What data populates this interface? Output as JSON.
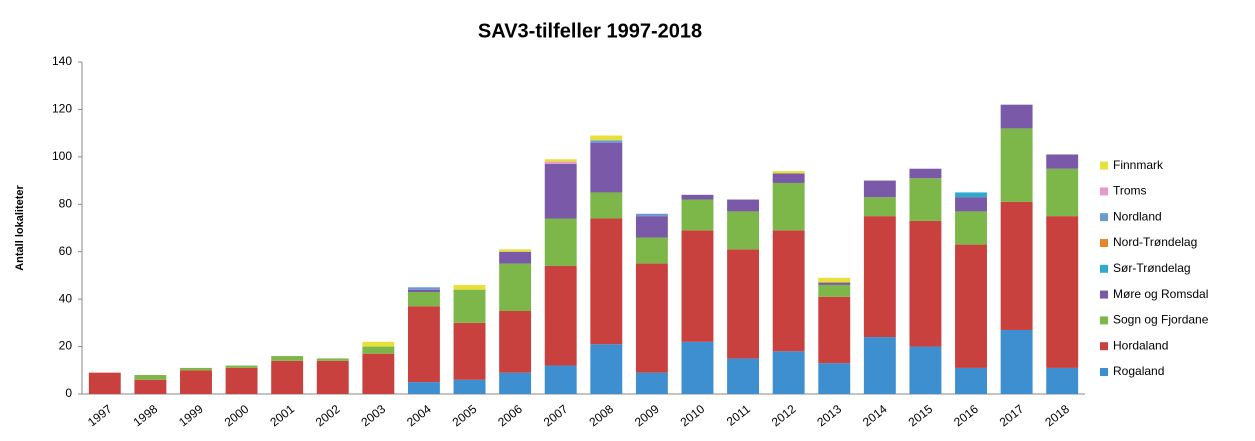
{
  "chart_data": {
    "type": "bar",
    "stacked": true,
    "title": "SAV3-tilfeller 1997-2018",
    "y_label": "Antall lokaliteter",
    "categories": [
      "1997",
      "1998",
      "1999",
      "2000",
      "2001",
      "2002",
      "2003",
      "2004",
      "2005",
      "2006",
      "2007",
      "2008",
      "2009",
      "2010",
      "2011",
      "2012",
      "2013",
      "2014",
      "2015",
      "2016",
      "2017",
      "2018"
    ],
    "series": [
      {
        "name": "Rogaland",
        "color": "#3d8fd0",
        "values": [
          0,
          0,
          0,
          0,
          0,
          0,
          0,
          5,
          6,
          9,
          12,
          21,
          9,
          22,
          15,
          18,
          13,
          24,
          20,
          11,
          27,
          11
        ]
      },
      {
        "name": "Hordaland",
        "color": "#c9413f",
        "values": [
          9,
          6,
          10,
          11,
          14,
          14,
          17,
          32,
          24,
          26,
          42,
          53,
          46,
          47,
          46,
          51,
          28,
          51,
          53,
          52,
          54,
          64
        ]
      },
      {
        "name": "Sogn og Fjordane",
        "color": "#7db649",
        "values": [
          0,
          2,
          1,
          1,
          2,
          1,
          3,
          6,
          14,
          20,
          20,
          11,
          11,
          13,
          16,
          20,
          5,
          8,
          18,
          14,
          31,
          20
        ]
      },
      {
        "name": "Møre og Romsdal",
        "color": "#7a5aa8",
        "values": [
          0,
          0,
          0,
          0,
          0,
          0,
          0,
          1,
          0,
          5,
          23,
          21,
          9,
          2,
          5,
          4,
          1,
          7,
          4,
          6,
          10,
          6
        ]
      },
      {
        "name": "Sør-Trøndelag",
        "color": "#2eaacb",
        "values": [
          0,
          0,
          0,
          0,
          0,
          0,
          0,
          0,
          0,
          0,
          0,
          0,
          0,
          0,
          0,
          0,
          0,
          0,
          0,
          2,
          0,
          0
        ]
      },
      {
        "name": "Nord-Trøndelag",
        "color": "#e8852a",
        "values": [
          0,
          0,
          0,
          0,
          0,
          0,
          0,
          0,
          0,
          0,
          0,
          0,
          0,
          0,
          0,
          0,
          0,
          0,
          0,
          0,
          0,
          0
        ]
      },
      {
        "name": "Nordland",
        "color": "#6b9bd1",
        "values": [
          0,
          0,
          0,
          0,
          0,
          0,
          0,
          1,
          0,
          0,
          0,
          1,
          1,
          0,
          0,
          0,
          0,
          0,
          0,
          0,
          0,
          0
        ]
      },
      {
        "name": "Troms",
        "color": "#e79ac7",
        "values": [
          0,
          0,
          0,
          0,
          0,
          0,
          0,
          0,
          0,
          0,
          1,
          0,
          0,
          0,
          0,
          0,
          0,
          0,
          0,
          0,
          0,
          0
        ]
      },
      {
        "name": "Finnmark",
        "color": "#e8e03a",
        "values": [
          0,
          0,
          0,
          0,
          0,
          0,
          2,
          0,
          2,
          1,
          1,
          2,
          0,
          0,
          0,
          1,
          2,
          0,
          0,
          0,
          0,
          0
        ]
      }
    ],
    "ylim": [
      0,
      140
    ],
    "yticks": [
      0,
      20,
      40,
      60,
      80,
      100,
      120,
      140
    ],
    "grid": false,
    "legend": "right"
  }
}
